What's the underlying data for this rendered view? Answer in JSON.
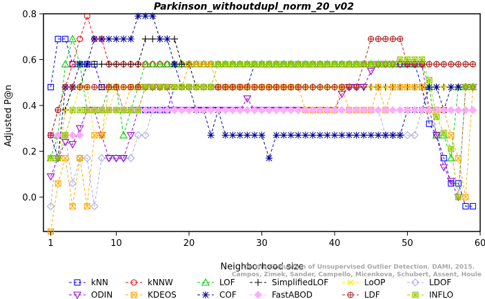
{
  "chart_data": {
    "type": "line",
    "title": "Parkinson_withoutdupl_norm_20_v02",
    "xlabel": "Neighborhood size",
    "ylabel": "Adjusted P@n",
    "xlim": [
      0,
      60
    ],
    "ylim": [
      -0.15,
      0.8
    ],
    "xticks": [
      1,
      10,
      20,
      30,
      40,
      50,
      60
    ],
    "yticks": [
      0.0,
      0.2,
      0.4,
      0.6,
      0.8
    ],
    "legend_position": "bottom",
    "watermark": [
      "On the Evaluation of Unsupervised Outlier Detection. DAMI, 2015.",
      "Campos, Zimek, Sander, Campello, Micenkova, Schubert, Assent, Houle"
    ],
    "x": [
      1,
      2,
      3,
      4,
      5,
      6,
      7,
      8,
      9,
      10,
      11,
      12,
      13,
      14,
      15,
      16,
      17,
      18,
      19,
      20,
      21,
      22,
      23,
      24,
      25,
      26,
      27,
      28,
      29,
      30,
      31,
      32,
      33,
      34,
      35,
      36,
      37,
      38,
      39,
      40,
      41,
      42,
      43,
      44,
      45,
      46,
      47,
      48,
      49,
      50,
      51,
      52,
      53,
      54,
      55,
      56,
      57,
      58,
      59
    ],
    "series": [
      {
        "name": "kNN",
        "color": "#0000ff",
        "marker": "square",
        "values": [
          0.48,
          0.69,
          0.69,
          0.58,
          0.58,
          0.58,
          0.58,
          0.48,
          0.48,
          0.48,
          0.38,
          0.38,
          0.38,
          0.38,
          0.38,
          0.38,
          0.38,
          0.48,
          0.48,
          0.48,
          0.48,
          0.48,
          0.48,
          0.48,
          0.48,
          0.48,
          0.48,
          0.48,
          0.58,
          0.58,
          0.58,
          0.58,
          0.58,
          0.58,
          0.58,
          0.58,
          0.58,
          0.58,
          0.58,
          0.58,
          0.58,
          0.58,
          0.58,
          0.58,
          0.58,
          0.58,
          0.58,
          0.58,
          0.58,
          0.58,
          0.58,
          0.48,
          0.32,
          0.27,
          0.17,
          0.06,
          0.06,
          -0.04,
          -0.04
        ]
      },
      {
        "name": "kNNW",
        "color": "#ff0000",
        "marker": "circle",
        "values": [
          0.27,
          0.38,
          0.48,
          0.58,
          0.69,
          0.79,
          0.69,
          0.69,
          0.58,
          0.58,
          0.58,
          0.58,
          0.58,
          0.58,
          0.58,
          0.58,
          0.58,
          0.58,
          0.58,
          0.58,
          0.58,
          0.58,
          0.58,
          0.58,
          0.58,
          0.58,
          0.58,
          0.58,
          0.58,
          0.58,
          0.58,
          0.58,
          0.58,
          0.58,
          0.58,
          0.58,
          0.58,
          0.58,
          0.58,
          0.58,
          0.58,
          0.58,
          0.58,
          0.58,
          0.58,
          0.58,
          0.58,
          0.58,
          0.58,
          0.58,
          0.58,
          0.58,
          0.58,
          0.58,
          0.58,
          0.58,
          0.58,
          0.58,
          0.58
        ]
      },
      {
        "name": "LOF",
        "color": "#00cc00",
        "marker": "triangle-up",
        "values": [
          0.17,
          0.27,
          0.58,
          0.69,
          0.58,
          0.38,
          0.38,
          0.38,
          0.48,
          0.48,
          0.27,
          0.38,
          0.48,
          0.58,
          0.58,
          0.58,
          0.58,
          0.58,
          0.58,
          0.58,
          0.58,
          0.58,
          0.58,
          0.58,
          0.58,
          0.58,
          0.58,
          0.58,
          0.58,
          0.58,
          0.58,
          0.58,
          0.58,
          0.58,
          0.58,
          0.58,
          0.58,
          0.58,
          0.58,
          0.58,
          0.58,
          0.58,
          0.58,
          0.58,
          0.58,
          0.58,
          0.58,
          0.58,
          0.58,
          0.58,
          0.58,
          0.58,
          0.48,
          0.27,
          0.27,
          0.17,
          0.48,
          0.48,
          0.48
        ]
      },
      {
        "name": "SimplifiedLOF",
        "color": "#000000",
        "marker": "plus",
        "values": [
          0.27,
          0.17,
          0.38,
          0.48,
          0.48,
          0.58,
          0.58,
          0.58,
          0.58,
          0.58,
          0.58,
          0.58,
          0.58,
          0.69,
          0.69,
          0.69,
          0.69,
          0.69,
          0.58,
          0.58,
          0.48,
          0.48,
          0.48,
          0.48,
          0.48,
          0.48,
          0.48,
          0.48,
          0.48,
          0.48,
          0.48,
          0.48,
          0.48,
          0.48,
          0.48,
          0.48,
          0.48,
          0.48,
          0.48,
          0.48,
          0.48,
          0.48,
          0.48,
          0.48,
          0.48,
          0.48,
          0.48,
          0.48,
          0.48,
          0.48,
          0.48,
          0.48,
          0.48,
          0.48,
          0.48,
          0.48,
          0.48,
          0.48,
          0.48
        ]
      },
      {
        "name": "LoOP",
        "color": "#ffdd00",
        "marker": "x",
        "values": [
          0.27,
          0.17,
          0.38,
          0.38,
          0.48,
          0.48,
          0.27,
          0.27,
          0.38,
          0.48,
          0.48,
          0.48,
          0.48,
          0.48,
          0.48,
          0.48,
          0.48,
          0.48,
          0.48,
          0.48,
          0.48,
          0.48,
          0.48,
          0.48,
          0.48,
          0.48,
          0.48,
          0.48,
          0.48,
          0.48,
          0.48,
          0.48,
          0.48,
          0.48,
          0.48,
          0.48,
          0.48,
          0.48,
          0.48,
          0.48,
          0.48,
          0.48,
          0.48,
          0.48,
          0.48,
          0.48,
          0.48,
          0.48,
          0.48,
          0.48,
          0.48,
          0.48,
          0.48,
          0.48,
          0.48,
          0.48,
          0.48,
          0.48,
          0.48
        ]
      },
      {
        "name": "LDOF",
        "color": "#aaaadd",
        "marker": "diamond",
        "values": [
          -0.04,
          0.27,
          0.27,
          0.06,
          0.17,
          0.17,
          -0.04,
          0.17,
          0.17,
          0.17,
          0.17,
          0.17,
          0.27,
          0.27,
          0.38,
          0.38,
          0.38,
          0.38,
          0.38,
          0.38,
          0.38,
          0.38,
          0.38,
          0.38,
          0.38,
          0.38,
          0.38,
          0.38,
          0.38,
          0.38,
          0.38,
          0.38,
          0.38,
          0.38,
          0.38,
          0.38,
          0.38,
          0.38,
          0.38,
          0.38,
          0.38,
          0.38,
          0.38,
          0.38,
          0.38,
          0.38,
          0.27,
          0.27,
          0.27,
          0.27,
          0.27,
          0.38,
          0.38,
          0.38,
          0.38,
          0.38,
          0.38,
          0.38,
          0.38
        ]
      },
      {
        "name": "ODIN",
        "color": "#9900cc",
        "marker": "triangle-down",
        "values": [
          0.09,
          0.17,
          0.24,
          0.23,
          0.3,
          0.38,
          0.38,
          0.27,
          0.17,
          0.17,
          0.17,
          0.27,
          0.38,
          0.48,
          0.48,
          0.48,
          0.48,
          0.38,
          0.38,
          0.38,
          0.38,
          0.38,
          0.38,
          0.38,
          0.38,
          0.38,
          0.38,
          0.43,
          0.38,
          0.38,
          0.38,
          0.38,
          0.38,
          0.38,
          0.38,
          0.38,
          0.38,
          0.38,
          0.38,
          0.38,
          0.45,
          0.48,
          0.48,
          0.48,
          0.55,
          0.58,
          0.58,
          0.58,
          0.58,
          0.58,
          0.58,
          0.58,
          0.38,
          0.27,
          0.13,
          0.07,
          0.0,
          0.48,
          0.48
        ]
      },
      {
        "name": "KDEOS",
        "color": "#ffaa00",
        "marker": "square-x",
        "values": [
          -0.15,
          0.06,
          0.17,
          -0.04,
          0.17,
          -0.04,
          0.27,
          0.27,
          0.48,
          0.48,
          0.38,
          0.48,
          0.48,
          0.48,
          0.48,
          0.48,
          0.48,
          0.48,
          0.48,
          0.58,
          0.58,
          0.58,
          0.58,
          0.48,
          0.48,
          0.48,
          0.48,
          0.48,
          0.48,
          0.48,
          0.48,
          0.48,
          0.48,
          0.48,
          0.48,
          0.38,
          0.38,
          0.38,
          0.38,
          0.38,
          0.48,
          0.38,
          0.38,
          0.38,
          0.38,
          0.48,
          0.38,
          0.48,
          0.48,
          0.48,
          0.48,
          0.48,
          0.38,
          0.38,
          0.38,
          0.27,
          0.17,
          0.0,
          0.48
        ]
      },
      {
        "name": "COF",
        "color": "#000099",
        "marker": "star",
        "values": [
          0.27,
          0.17,
          0.48,
          0.48,
          0.58,
          0.58,
          0.69,
          0.69,
          0.69,
          0.69,
          0.69,
          0.69,
          0.79,
          0.79,
          0.79,
          0.69,
          0.69,
          0.58,
          0.48,
          0.48,
          0.38,
          0.38,
          0.27,
          0.38,
          0.27,
          0.27,
          0.27,
          0.27,
          0.27,
          0.27,
          0.17,
          0.27,
          0.27,
          0.27,
          0.27,
          0.27,
          0.27,
          0.27,
          0.27,
          0.27,
          0.27,
          0.27,
          0.27,
          0.27,
          0.27,
          0.27,
          0.27,
          0.27,
          0.27,
          0.38,
          0.38,
          0.38,
          0.48,
          0.48,
          0.38,
          0.48,
          0.48,
          0.48,
          0.48
        ]
      },
      {
        "name": "FastABOD",
        "color": "#ffaaff",
        "marker": "diamond-filled",
        "values": [
          0.27,
          0.27,
          0.27,
          0.27,
          0.27,
          0.38,
          0.38,
          0.38,
          0.38,
          0.38,
          0.38,
          0.38,
          0.38,
          0.38,
          0.38,
          0.38,
          0.38,
          0.38,
          0.38,
          0.38,
          0.38,
          0.38,
          0.38,
          0.38,
          0.38,
          0.38,
          0.38,
          0.38,
          0.38,
          0.38,
          0.38,
          0.38,
          0.38,
          0.38,
          0.38,
          0.38,
          0.38,
          0.38,
          0.38,
          0.38,
          0.38,
          0.38,
          0.38,
          0.38,
          0.38,
          0.38,
          0.38,
          0.38,
          0.38,
          0.38,
          0.38,
          0.38,
          0.38,
          0.38,
          0.38,
          0.38,
          0.38,
          0.38,
          0.38
        ]
      },
      {
        "name": "LDF",
        "color": "#aa2222",
        "marker": "circle-plus",
        "values": [
          0.27,
          0.38,
          0.48,
          0.48,
          0.48,
          0.48,
          0.48,
          0.48,
          0.48,
          0.48,
          0.48,
          0.48,
          0.48,
          0.48,
          0.48,
          0.48,
          0.48,
          0.48,
          0.48,
          0.48,
          0.48,
          0.48,
          0.48,
          0.48,
          0.48,
          0.48,
          0.48,
          0.48,
          0.48,
          0.48,
          0.48,
          0.48,
          0.48,
          0.48,
          0.48,
          0.48,
          0.48,
          0.48,
          0.48,
          0.48,
          0.48,
          0.48,
          0.48,
          0.58,
          0.69,
          0.69,
          0.69,
          0.69,
          0.69,
          0.58,
          0.58,
          0.58,
          0.58,
          0.58,
          0.58,
          0.58,
          0.58,
          0.58,
          0.58
        ]
      },
      {
        "name": "INFLO",
        "color": "#99cc00",
        "marker": "star-square",
        "values": [
          0.17,
          0.17,
          0.27,
          0.38,
          0.38,
          0.38,
          0.38,
          0.38,
          0.38,
          0.38,
          0.38,
          0.38,
          0.38,
          0.48,
          0.48,
          0.48,
          0.48,
          0.48,
          0.48,
          0.48,
          0.48,
          0.48,
          0.48,
          0.58,
          0.58,
          0.58,
          0.58,
          0.58,
          0.58,
          0.58,
          0.58,
          0.58,
          0.58,
          0.58,
          0.58,
          0.58,
          0.58,
          0.58,
          0.58,
          0.58,
          0.58,
          0.58,
          0.58,
          0.58,
          0.58,
          0.58,
          0.58,
          0.58,
          0.6,
          0.6,
          0.6,
          0.6,
          0.51,
          0.35,
          0.28,
          0.21,
          0.0,
          0.48,
          0.48
        ]
      }
    ]
  }
}
